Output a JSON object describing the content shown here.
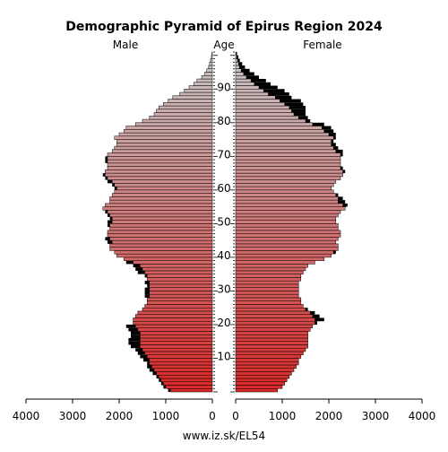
{
  "chart_data": {
    "type": "population-pyramid",
    "title": "Demographic Pyramid of Epirus Region 2024",
    "left_label": "Male",
    "center_label": "Age",
    "right_label": "Female",
    "source": "www.iz.sk/EL54",
    "x_ticks_left": [
      "4000",
      "3000",
      "2000",
      "1000",
      "0"
    ],
    "x_ticks_right": [
      "0",
      "1000",
      "2000",
      "3000",
      "4000"
    ],
    "x_tick_values": [
      4000,
      3000,
      2000,
      1000,
      0
    ],
    "y_ticks": [
      "10",
      "20",
      "30",
      "40",
      "50",
      "60",
      "70",
      "80",
      "90"
    ],
    "y_tick_values": [
      10,
      20,
      30,
      40,
      50,
      60,
      70,
      80,
      90
    ],
    "xlim": [
      0,
      4000
    ],
    "ages": [
      0,
      1,
      2,
      3,
      4,
      5,
      6,
      7,
      8,
      9,
      10,
      11,
      12,
      13,
      14,
      15,
      16,
      17,
      18,
      19,
      20,
      21,
      22,
      23,
      24,
      25,
      26,
      27,
      28,
      29,
      30,
      31,
      32,
      33,
      34,
      35,
      36,
      37,
      38,
      39,
      40,
      41,
      42,
      43,
      44,
      45,
      46,
      47,
      48,
      49,
      50,
      51,
      52,
      53,
      54,
      55,
      56,
      57,
      58,
      59,
      60,
      61,
      62,
      63,
      64,
      65,
      66,
      67,
      68,
      69,
      70,
      71,
      72,
      73,
      74,
      75,
      76,
      77,
      78,
      79,
      80,
      81,
      82,
      83,
      84,
      85,
      86,
      87,
      88,
      89,
      90,
      91,
      92,
      93,
      94,
      95,
      96,
      97,
      98,
      99,
      100
    ],
    "male_series_name": "Male",
    "female_series_name": "Female",
    "male_values": [
      950,
      1050,
      1100,
      1150,
      1200,
      1280,
      1350,
      1400,
      1400,
      1480,
      1550,
      1600,
      1650,
      1750,
      1800,
      1800,
      1750,
      1750,
      1800,
      1850,
      1700,
      1700,
      1650,
      1600,
      1500,
      1450,
      1400,
      1400,
      1450,
      1450,
      1450,
      1400,
      1450,
      1400,
      1450,
      1600,
      1650,
      1700,
      1850,
      1900,
      2050,
      2100,
      2200,
      2200,
      2250,
      2300,
      2250,
      2250,
      2200,
      2250,
      2250,
      2200,
      2250,
      2300,
      2350,
      2300,
      2200,
      2200,
      2150,
      2100,
      2100,
      2150,
      2250,
      2300,
      2350,
      2300,
      2250,
      2250,
      2300,
      2300,
      2250,
      2150,
      2100,
      2050,
      2050,
      2100,
      2000,
      1900,
      1850,
      1650,
      1500,
      1350,
      1250,
      1200,
      1150,
      1050,
      950,
      850,
      700,
      600,
      500,
      400,
      330,
      230,
      170,
      120,
      80,
      60,
      40,
      20,
      10
    ],
    "female_values": [
      900,
      1000,
      1050,
      1100,
      1150,
      1200,
      1250,
      1300,
      1350,
      1350,
      1400,
      1450,
      1500,
      1550,
      1550,
      1550,
      1550,
      1550,
      1600,
      1650,
      1750,
      1900,
      1800,
      1700,
      1550,
      1450,
      1400,
      1400,
      1350,
      1350,
      1350,
      1350,
      1350,
      1400,
      1400,
      1450,
      1500,
      1550,
      1700,
      1900,
      2050,
      2150,
      2200,
      2200,
      2150,
      2200,
      2250,
      2250,
      2200,
      2200,
      2150,
      2150,
      2200,
      2250,
      2350,
      2400,
      2350,
      2300,
      2200,
      2100,
      2050,
      2100,
      2150,
      2250,
      2300,
      2350,
      2300,
      2250,
      2250,
      2250,
      2300,
      2300,
      2200,
      2150,
      2100,
      2150,
      2150,
      2100,
      2050,
      1900,
      1600,
      1550,
      1500,
      1500,
      1500,
      1450,
      1400,
      1200,
      1150,
      1050,
      900,
      750,
      650,
      500,
      400,
      300,
      200,
      140,
      90,
      60,
      30
    ],
    "male_surplus_color": "#000000",
    "female_surplus_color": "#000000",
    "gradient_top_color": "#c8c8c8",
    "gradient_bottom_color": "#d82828",
    "bar_border_color": "#000000"
  }
}
